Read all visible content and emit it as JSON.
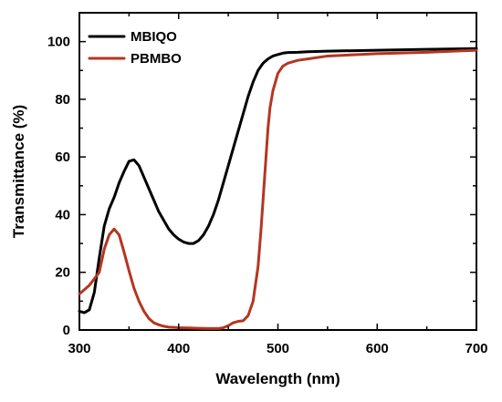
{
  "chart_data": {
    "type": "line",
    "title": "",
    "xlabel": "Wavelength (nm)",
    "ylabel": "Transmittance (%)",
    "xlim": [
      300,
      700
    ],
    "ylim": [
      0,
      110
    ],
    "grid": false,
    "legend_position": "top-left",
    "x_ticks": [
      300,
      400,
      500,
      600,
      700
    ],
    "y_ticks": [
      0,
      20,
      40,
      60,
      80,
      100
    ],
    "x_tick_labels": [
      "300",
      "400",
      "500",
      "600",
      "700"
    ],
    "y_tick_labels": [
      "0",
      "20",
      "40",
      "60",
      "80",
      "100"
    ],
    "series": [
      {
        "name": "MBIQO",
        "color": "#000000",
        "x": [
          300,
          305,
          310,
          315,
          320,
          325,
          330,
          335,
          340,
          345,
          350,
          355,
          360,
          365,
          370,
          375,
          380,
          385,
          390,
          395,
          400,
          405,
          410,
          415,
          420,
          425,
          430,
          435,
          440,
          445,
          450,
          455,
          460,
          465,
          470,
          475,
          480,
          485,
          490,
          495,
          500,
          505,
          510,
          520,
          530,
          550,
          600,
          650,
          700
        ],
        "y": [
          6.5,
          6,
          7,
          13,
          25,
          36,
          42,
          46,
          51,
          55,
          58.5,
          59,
          57,
          53,
          49,
          45,
          41,
          38,
          35,
          33,
          31.5,
          30.5,
          30,
          30,
          31,
          33,
          36,
          40,
          45,
          51,
          57,
          63,
          69,
          75,
          81,
          86,
          90,
          92.5,
          94,
          95,
          95.5,
          96,
          96.2,
          96.3,
          96.5,
          96.7,
          97,
          97.3,
          97.6
        ]
      },
      {
        "name": "PBMBO",
        "color": "#b5361f",
        "x": [
          300,
          310,
          320,
          325,
          330,
          335,
          340,
          345,
          350,
          355,
          360,
          365,
          370,
          375,
          380,
          385,
          390,
          395,
          400,
          410,
          420,
          430,
          440,
          445,
          450,
          455,
          460,
          465,
          470,
          475,
          480,
          483,
          486,
          488,
          490,
          492,
          495,
          500,
          505,
          510,
          520,
          530,
          550,
          600,
          650,
          700
        ],
        "y": [
          12.5,
          15.5,
          20,
          28,
          33,
          35,
          33,
          27,
          20.5,
          14.5,
          10,
          6.5,
          4,
          2.5,
          1.8,
          1.3,
          1,
          0.9,
          0.8,
          0.7,
          0.6,
          0.5,
          0.5,
          0.8,
          1.5,
          2.5,
          3,
          3.2,
          5,
          10,
          22,
          35,
          50,
          60,
          70,
          77,
          83,
          89,
          91.5,
          92.5,
          93.5,
          94,
          95,
          95.8,
          96.3,
          97
        ]
      }
    ]
  }
}
